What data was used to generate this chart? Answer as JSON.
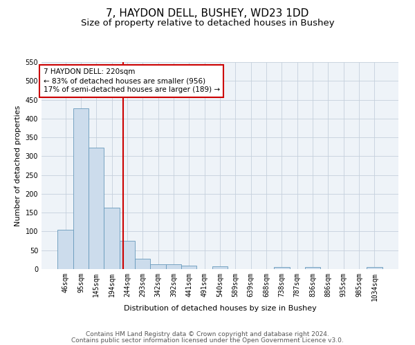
{
  "title": "7, HAYDON DELL, BUSHEY, WD23 1DD",
  "subtitle": "Size of property relative to detached houses in Bushey",
  "xlabel": "Distribution of detached houses by size in Bushey",
  "ylabel": "Number of detached properties",
  "bar_labels": [
    "46sqm",
    "95sqm",
    "145sqm",
    "194sqm",
    "244sqm",
    "293sqm",
    "342sqm",
    "392sqm",
    "441sqm",
    "491sqm",
    "540sqm",
    "589sqm",
    "639sqm",
    "688sqm",
    "738sqm",
    "787sqm",
    "836sqm",
    "886sqm",
    "935sqm",
    "985sqm",
    "1034sqm"
  ],
  "bar_values": [
    105,
    428,
    322,
    163,
    75,
    27,
    12,
    12,
    10,
    0,
    8,
    0,
    0,
    0,
    5,
    0,
    5,
    0,
    0,
    0,
    5
  ],
  "bar_color": "#ccdcec",
  "bar_edge_color": "#6699bb",
  "ylim": [
    0,
    550
  ],
  "yticks": [
    0,
    50,
    100,
    150,
    200,
    250,
    300,
    350,
    400,
    450,
    500,
    550
  ],
  "red_line_x": 3.74,
  "annotation_line1": "7 HAYDON DELL: 220sqm",
  "annotation_line2": "← 83% of detached houses are smaller (956)",
  "annotation_line3": "17% of semi-detached houses are larger (189) →",
  "annotation_box_color": "#ffffff",
  "annotation_box_edge": "#cc0000",
  "footer1": "Contains HM Land Registry data © Crown copyright and database right 2024.",
  "footer2": "Contains public sector information licensed under the Open Government Licence v3.0.",
  "background_color": "#eef3f8",
  "grid_color": "#c5d0dc",
  "title_fontsize": 11,
  "subtitle_fontsize": 9.5,
  "axis_label_fontsize": 8,
  "tick_fontsize": 7,
  "footer_fontsize": 6.5
}
